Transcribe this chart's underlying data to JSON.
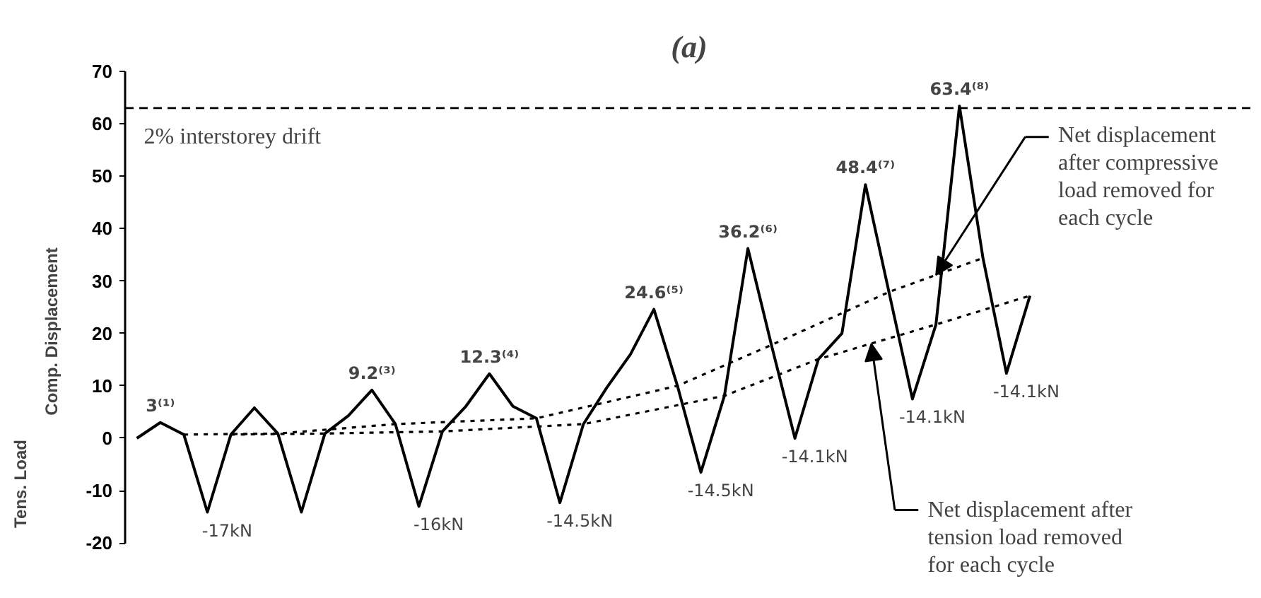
{
  "chart_data": {
    "type": "line",
    "title": "(a)",
    "ylabel": "Comp. Displacement",
    "categories": [
      null,
      null,
      null,
      null,
      null,
      null,
      null,
      null,
      null,
      null,
      null,
      null,
      null,
      null,
      null,
      null,
      null,
      null,
      null,
      null,
      null,
      null,
      null,
      null,
      null,
      null,
      null,
      null,
      null,
      null,
      null,
      null,
      null,
      null,
      null,
      null,
      null,
      null,
      null,
      null,
      null,
      null,
      null,
      null,
      null,
      null,
      null,
      null
    ],
    "ylim": [
      -20,
      70
    ],
    "yticks": [
      -20,
      -10,
      0,
      10,
      20,
      30,
      40,
      50,
      60,
      70
    ],
    "tick_labels": "y",
    "grid": false,
    "marker": "none",
    "ref_lines": [
      {
        "axis": "y",
        "value": 63,
        "label": "2% interstorey drift",
        "color": "#000000",
        "line_style": "dashed"
      }
    ],
    "series": [
      {
        "color": "#000000",
        "line_style": "solid",
        "values": [
          0,
          3,
          0.7,
          -14.1,
          0.7,
          5.8,
          0.9,
          -14.1,
          0.9,
          4.3,
          9.2,
          2.7,
          -13,
          1.3,
          6.1,
          12.3,
          6.1,
          3.8,
          -12.3,
          2.7,
          9.7,
          16,
          24.6,
          10,
          -6.5,
          8.1,
          36.2,
          17.8,
          0,
          15.1,
          20,
          48.4,
          27.9,
          7.5,
          21.7,
          63.4,
          34.4,
          12.4,
          27.2,
          null,
          null,
          null,
          null,
          null,
          null,
          null,
          null,
          null
        ]
      },
      {
        "color": "#000000",
        "line_style": "dotted",
        "values": [
          null,
          null,
          0.7,
          null,
          null,
          null,
          0.9,
          null,
          null,
          null,
          null,
          2.7,
          null,
          null,
          null,
          null,
          null,
          3.8,
          null,
          null,
          null,
          null,
          null,
          10,
          null,
          null,
          null,
          17.8,
          null,
          null,
          null,
          null,
          27.9,
          null,
          null,
          null,
          34.4,
          null,
          null,
          null,
          null,
          null,
          null,
          null,
          null,
          null,
          null,
          null
        ]
      },
      {
        "color": "#000000",
        "line_style": "dotted",
        "values": [
          null,
          null,
          null,
          null,
          0.7,
          null,
          null,
          null,
          0.9,
          null,
          null,
          null,
          null,
          1.3,
          null,
          null,
          null,
          null,
          null,
          2.7,
          null,
          null,
          null,
          null,
          null,
          8.1,
          null,
          null,
          null,
          15.1,
          null,
          null,
          null,
          null,
          21.7,
          null,
          null,
          null,
          27.2,
          null,
          null,
          null,
          null,
          null,
          null,
          null,
          null,
          null
        ]
      }
    ],
    "annotations": [
      "Tens. Load",
      {
        "text": "3⁽¹⁾",
        "y": 3
      },
      {
        "text": "9.2⁽³⁾",
        "y": 9.2
      },
      {
        "text": "12.3⁽⁴⁾",
        "y": 12.3
      },
      {
        "text": "24.6⁽⁵⁾",
        "y": 24.6
      },
      {
        "text": "36.2⁽⁶⁾",
        "y": 36.2
      },
      {
        "text": "48.4⁽⁷⁾",
        "y": 48.4
      },
      {
        "text": "63.4⁽⁸⁾",
        "y": 63.4
      },
      "-17kN",
      "-16kN",
      "-14.5kN",
      "-14.5kN",
      "-14.1kN",
      "-14.1kN",
      "-14.1kN",
      "Net displacement\nafter compressive\nload removed for\neach cycle",
      "Net displacement after\ntension load removed\nfor each cycle"
    ]
  }
}
